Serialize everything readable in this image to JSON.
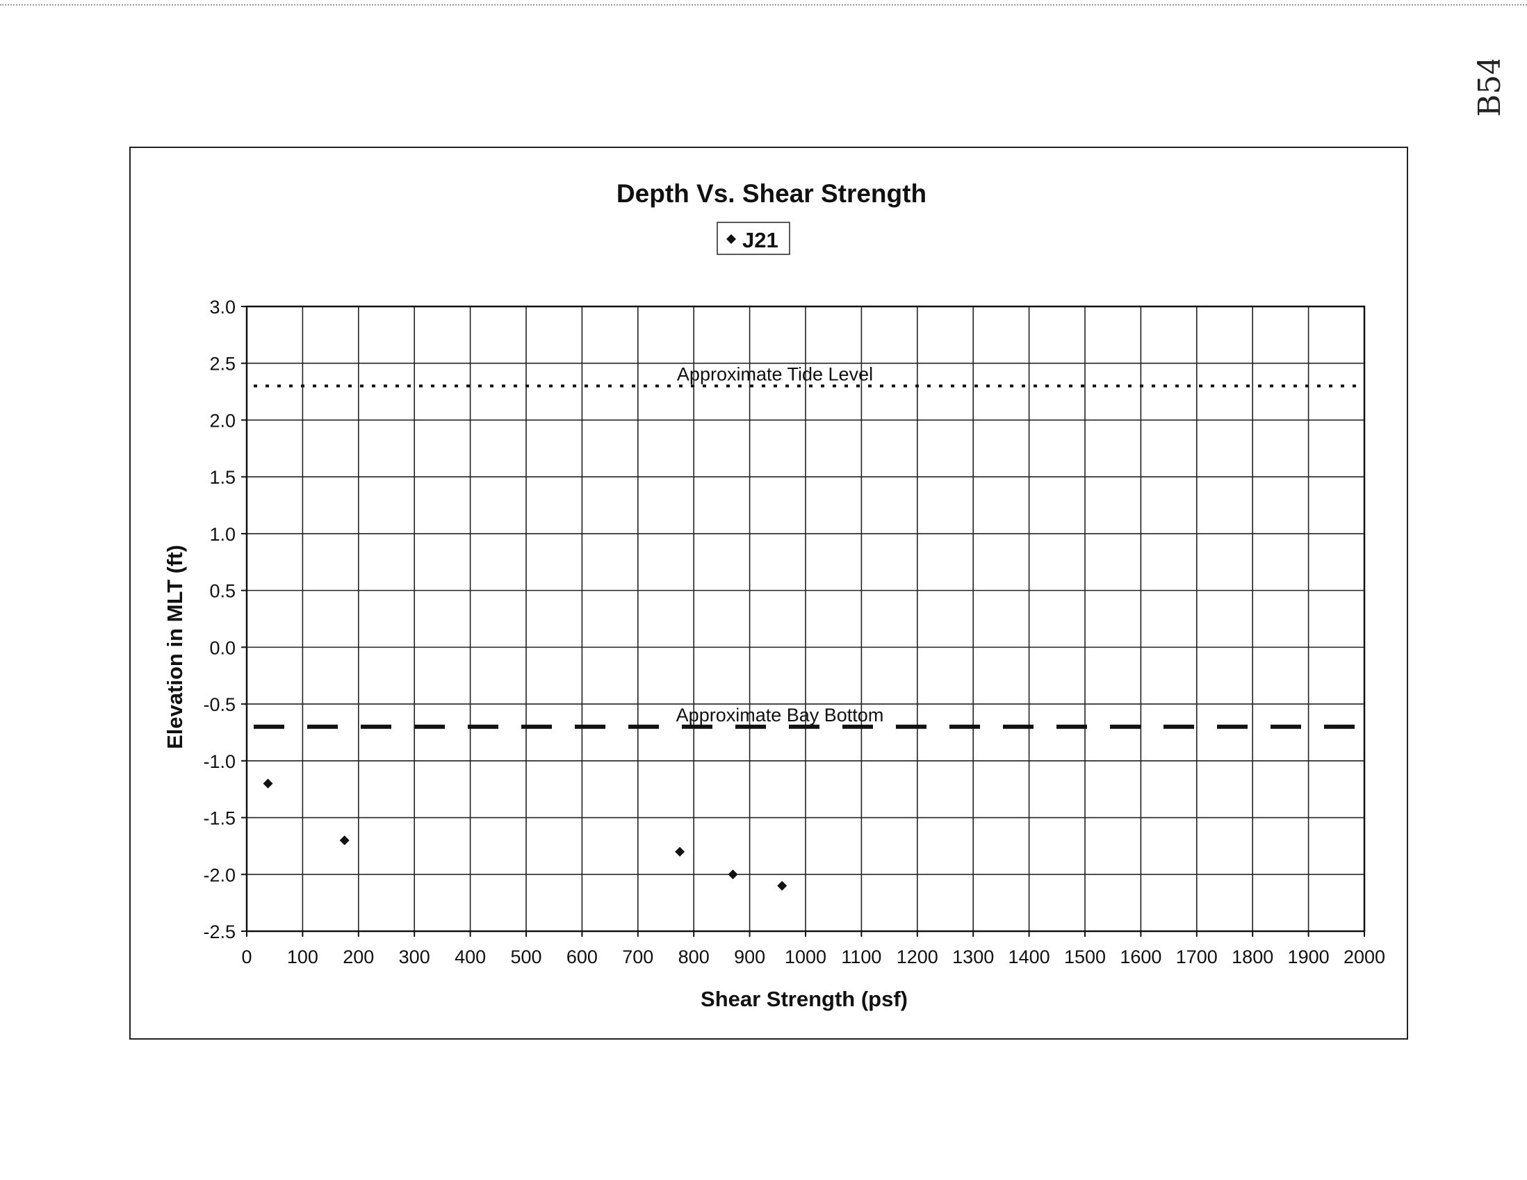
{
  "page": {
    "page_mark": "B54"
  },
  "chart_data": {
    "type": "scatter",
    "title": "Depth Vs. Shear Strength",
    "xlabel": "Shear Strength (psf)",
    "ylabel": "Elevation in MLT (ft)",
    "xlim": [
      0,
      2000
    ],
    "ylim": [
      -2.5,
      3.0
    ],
    "xticks": [
      0,
      100,
      200,
      300,
      400,
      500,
      600,
      700,
      800,
      900,
      1000,
      1100,
      1200,
      1300,
      1400,
      1500,
      1600,
      1700,
      1800,
      1900,
      2000
    ],
    "yticks": [
      3.0,
      2.5,
      2.0,
      1.5,
      1.0,
      0.5,
      0.0,
      -0.5,
      -1.0,
      -1.5,
      -2.0,
      -2.5
    ],
    "grid": true,
    "legend": {
      "placement": "top-center",
      "entries": [
        "J21"
      ]
    },
    "series": [
      {
        "name": "J21",
        "marker": "diamond",
        "color": "#111111",
        "x": [
          38,
          175,
          775,
          870,
          958
        ],
        "y": [
          -1.2,
          -1.7,
          -1.8,
          -2.0,
          -2.1
        ]
      }
    ],
    "reference_lines": [
      {
        "label": "Approximate Tide Level",
        "y": 2.3,
        "style": "dotted",
        "color": "#111111"
      },
      {
        "label": "Approximate Bay Bottom",
        "y": -0.7,
        "style": "dashed",
        "color": "#111111"
      }
    ]
  }
}
